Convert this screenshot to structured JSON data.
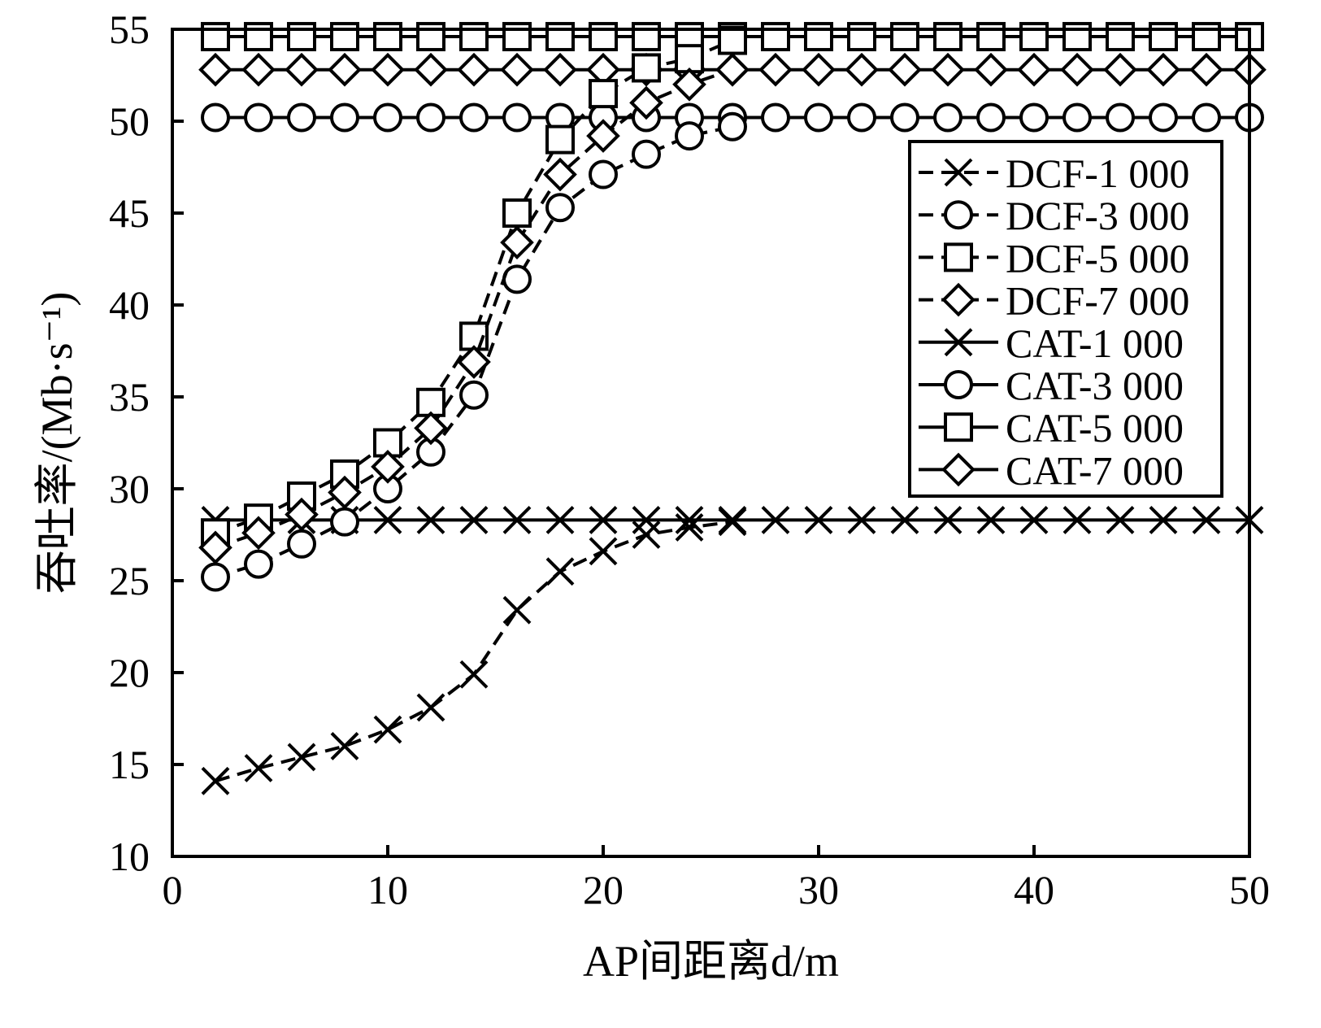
{
  "chart_data": {
    "type": "line",
    "xlabel": "AP间距离d/m",
    "ylabel": "吞吐率/(Mb·s⁻¹)",
    "xlim": [
      0,
      50
    ],
    "ylim": [
      10,
      55
    ],
    "xticks": [
      "0",
      "10",
      "20",
      "30",
      "40",
      "50"
    ],
    "yticks": [
      "10",
      "15",
      "20",
      "25",
      "30",
      "35",
      "40",
      "45",
      "50",
      "55"
    ],
    "grid": false,
    "legend_position": "right",
    "series": [
      {
        "name": "DCF-1 000",
        "style": "dashed",
        "marker": "x",
        "x": [
          2,
          4,
          6,
          8,
          10,
          12,
          14,
          16,
          18,
          20,
          22,
          24,
          26
        ],
        "y": [
          14.1,
          14.8,
          15.4,
          16.0,
          16.9,
          18.1,
          19.9,
          23.4,
          25.5,
          26.6,
          27.5,
          27.9,
          28.2
        ]
      },
      {
        "name": "DCF-3 000",
        "style": "dashed",
        "marker": "circle",
        "x": [
          2,
          4,
          6,
          8,
          10,
          12,
          14,
          16,
          18,
          20,
          22,
          24,
          26
        ],
        "y": [
          25.2,
          25.9,
          27.0,
          28.2,
          30.0,
          32.0,
          35.1,
          41.4,
          45.3,
          47.1,
          48.2,
          49.2,
          49.7
        ]
      },
      {
        "name": "DCF-5 000",
        "style": "dashed",
        "marker": "square",
        "x": [
          2,
          4,
          6,
          8,
          10,
          12,
          14,
          16,
          18,
          20,
          22,
          24,
          26
        ],
        "y": [
          27.6,
          28.4,
          29.6,
          30.8,
          32.5,
          34.7,
          38.3,
          45.0,
          49.0,
          51.5,
          52.9,
          53.4,
          54.4
        ]
      },
      {
        "name": "DCF-7 000",
        "style": "dashed",
        "marker": "diamond",
        "x": [
          2,
          4,
          6,
          8,
          10,
          12,
          14,
          16,
          18,
          20,
          22,
          24,
          26
        ],
        "y": [
          26.8,
          27.6,
          28.6,
          29.8,
          31.2,
          33.3,
          36.9,
          43.4,
          47.1,
          49.2,
          51.0,
          52.0,
          52.8
        ]
      },
      {
        "name": "CAT-1 000",
        "style": "solid",
        "marker": "x",
        "x": [
          2,
          4,
          6,
          8,
          10,
          12,
          14,
          16,
          18,
          20,
          22,
          24,
          26,
          28,
          30,
          32,
          34,
          36,
          38,
          40,
          42,
          44,
          46,
          48,
          50
        ],
        "y": [
          28.3,
          28.3,
          28.3,
          28.3,
          28.3,
          28.3,
          28.3,
          28.3,
          28.3,
          28.3,
          28.3,
          28.3,
          28.3,
          28.3,
          28.3,
          28.3,
          28.3,
          28.3,
          28.3,
          28.3,
          28.3,
          28.3,
          28.3,
          28.3,
          28.3
        ]
      },
      {
        "name": "CAT-3 000",
        "style": "solid",
        "marker": "circle",
        "x": [
          2,
          4,
          6,
          8,
          10,
          12,
          14,
          16,
          18,
          20,
          22,
          24,
          26,
          28,
          30,
          32,
          34,
          36,
          38,
          40,
          42,
          44,
          46,
          48,
          50
        ],
        "y": [
          50.2,
          50.2,
          50.2,
          50.2,
          50.2,
          50.2,
          50.2,
          50.2,
          50.2,
          50.2,
          50.2,
          50.2,
          50.2,
          50.2,
          50.2,
          50.2,
          50.2,
          50.2,
          50.2,
          50.2,
          50.2,
          50.2,
          50.2,
          50.2,
          50.2
        ]
      },
      {
        "name": "CAT-5 000",
        "style": "solid",
        "marker": "square",
        "x": [
          2,
          4,
          6,
          8,
          10,
          12,
          14,
          16,
          18,
          20,
          22,
          24,
          26,
          28,
          30,
          32,
          34,
          36,
          38,
          40,
          42,
          44,
          46,
          48,
          50
        ],
        "y": [
          54.6,
          54.6,
          54.6,
          54.6,
          54.6,
          54.6,
          54.6,
          54.6,
          54.6,
          54.6,
          54.6,
          54.6,
          54.6,
          54.6,
          54.6,
          54.6,
          54.6,
          54.6,
          54.6,
          54.6,
          54.6,
          54.6,
          54.6,
          54.6,
          54.6
        ]
      },
      {
        "name": "CAT-7 000",
        "style": "solid",
        "marker": "diamond",
        "x": [
          2,
          4,
          6,
          8,
          10,
          12,
          14,
          16,
          18,
          20,
          22,
          24,
          26,
          28,
          30,
          32,
          34,
          36,
          38,
          40,
          42,
          44,
          46,
          48,
          50
        ],
        "y": [
          52.8,
          52.8,
          52.8,
          52.8,
          52.8,
          52.8,
          52.8,
          52.8,
          52.8,
          52.8,
          52.8,
          52.8,
          52.8,
          52.8,
          52.8,
          52.8,
          52.8,
          52.8,
          52.8,
          52.8,
          52.8,
          52.8,
          52.8,
          52.8,
          52.8
        ]
      }
    ]
  }
}
